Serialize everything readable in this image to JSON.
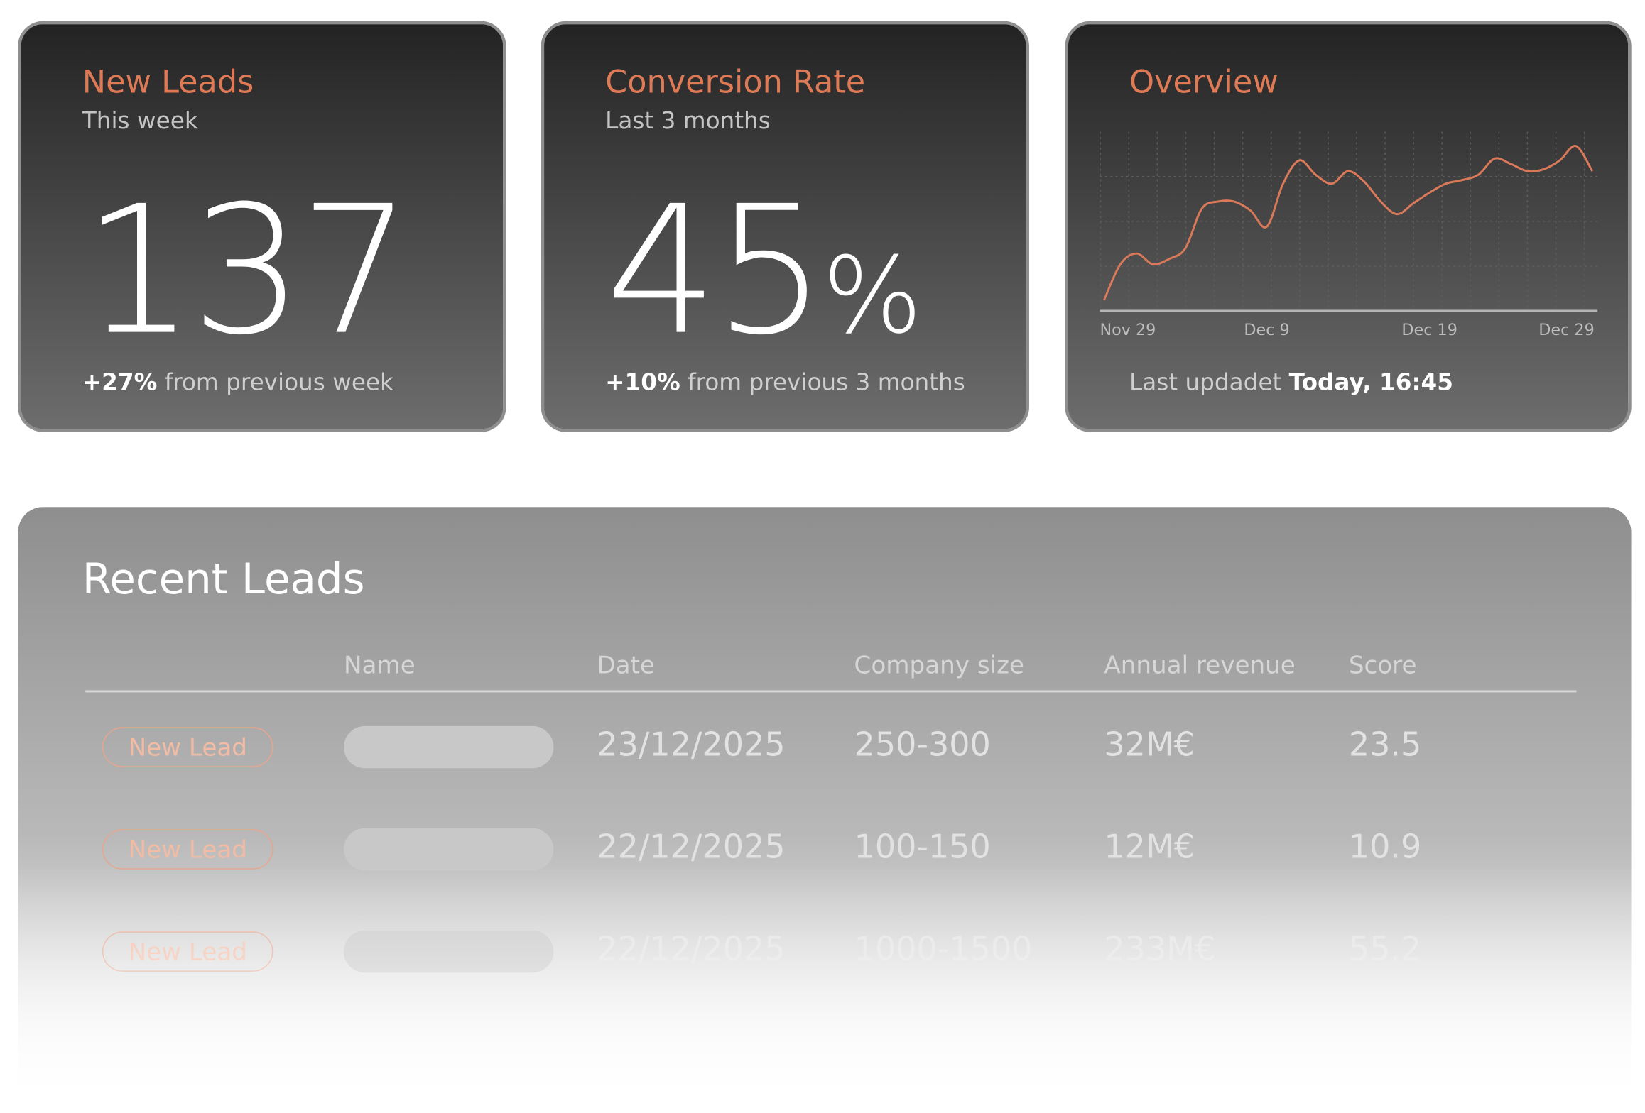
{
  "cards": [
    {
      "title": "New Leads",
      "subtitle": "This week",
      "value": 137,
      "change": "+27%",
      "note": "from previous week"
    },
    {
      "title": "Conversion Rate",
      "subtitle": "Last 3 months",
      "value": 45,
      "unit": "%",
      "change": "+10%",
      "note": "from previous 3 months"
    }
  ],
  "chart_data": {
    "type": "line",
    "title": "Overview",
    "categories": [
      "Nov 29",
      null,
      null,
      null,
      null,
      null,
      null,
      null,
      null,
      null,
      "Dec 9",
      null,
      null,
      null,
      null,
      null,
      null,
      null,
      null,
      null,
      "Dec 19",
      null,
      null,
      null,
      null,
      null,
      null,
      null,
      null,
      null,
      "Dec 29"
    ],
    "series": [
      {
        "color": "#d9795a",
        "values": [
          6,
          26,
          32,
          26,
          29,
          35,
          57,
          61,
          61,
          56,
          47,
          71,
          84,
          76,
          71,
          78,
          72,
          61,
          54,
          60,
          66,
          71,
          73,
          76,
          85,
          82,
          78,
          79,
          84,
          92,
          78
        ]
      }
    ],
    "ylim": [
      0,
      100
    ],
    "yticks": [
      0,
      25,
      50,
      75
    ],
    "grid": true,
    "update_label": "Last updadet",
    "update_time": "Today, 16:45"
  },
  "table": {
    "title": "Recent Leads",
    "columns": [
      "Name",
      "Date",
      "Company size",
      "Annual revenue",
      "Score"
    ],
    "rows": [
      {
        "status": "New Lead",
        "date": "23/12/2025",
        "size": "250-300",
        "revenue": "32M€",
        "score": 23.5
      },
      {
        "status": "New Lead",
        "date": "22/12/2025",
        "size": "100-150",
        "revenue": "12M€",
        "score": 10.9
      },
      {
        "status": "New Lead",
        "date": "22/12/2025",
        "size": "1000-1500",
        "revenue": "233M€",
        "score": 55.2
      }
    ]
  }
}
